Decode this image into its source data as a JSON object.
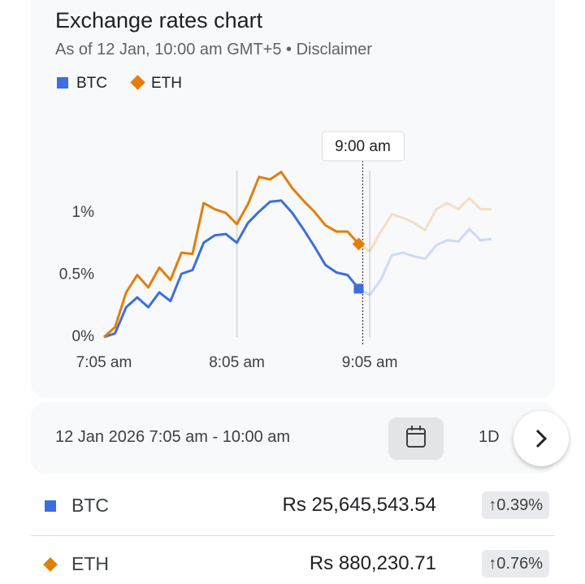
{
  "chart_data": {
    "type": "line",
    "title": "Exchange rates chart",
    "subtitle": "As of 12 Jan, 10:00 am GMT+5 • Disclaimer",
    "categories": [
      "7:05 am",
      null,
      null,
      null,
      null,
      null,
      null,
      null,
      null,
      null,
      null,
      null,
      "8:05 am",
      null,
      null,
      null,
      null,
      null,
      null,
      null,
      null,
      null,
      null,
      null,
      "9:05 am",
      null,
      null,
      null,
      null,
      null,
      null,
      null,
      null,
      null,
      null,
      null
    ],
    "series": [
      {
        "name": "BTC",
        "color": "#3d6ee0",
        "values": [
          0,
          0.03,
          0.24,
          0.32,
          0.24,
          0.36,
          0.29,
          0.51,
          0.54,
          0.76,
          0.82,
          0.83,
          0.76,
          0.92,
          1.01,
          1.09,
          1.1,
          1.0,
          0.87,
          0.73,
          0.58,
          0.52,
          0.5,
          0.39,
          0.34,
          0.46,
          0.66,
          0.68,
          0.65,
          0.63,
          0.74,
          0.78,
          0.77,
          0.87,
          0.78,
          0.79
        ]
      },
      {
        "name": "ETH",
        "color": "#e37e0c",
        "values": [
          0,
          0.08,
          0.36,
          0.5,
          0.4,
          0.56,
          0.46,
          0.68,
          0.67,
          1.08,
          1.03,
          1.0,
          0.91,
          1.07,
          1.29,
          1.27,
          1.33,
          1.2,
          1.1,
          1.01,
          0.9,
          0.85,
          0.85,
          0.75,
          0.69,
          0.85,
          0.99,
          0.96,
          0.92,
          0.86,
          1.03,
          1.08,
          1.03,
          1.12,
          1.03,
          1.03
        ]
      }
    ],
    "ylim": [
      0,
      1.4
    ],
    "yticks": [
      {
        "value": 0,
        "label": "0%"
      },
      {
        "value": 0.5,
        "label": "0.5%"
      },
      {
        "value": 1,
        "label": "1%"
      }
    ],
    "tooltip": "9:00 am",
    "hover_index": 23
  },
  "range_bar": {
    "range": "12 Jan 2026 7:05 am - 10:00 am",
    "period": "1D"
  },
  "rates": [
    {
      "name": "BTC",
      "price": "Rs 25,645,543.54",
      "change": "↑0.39%"
    },
    {
      "name": "ETH",
      "price": "Rs 880,230.71",
      "change": "↑0.76%"
    }
  ]
}
